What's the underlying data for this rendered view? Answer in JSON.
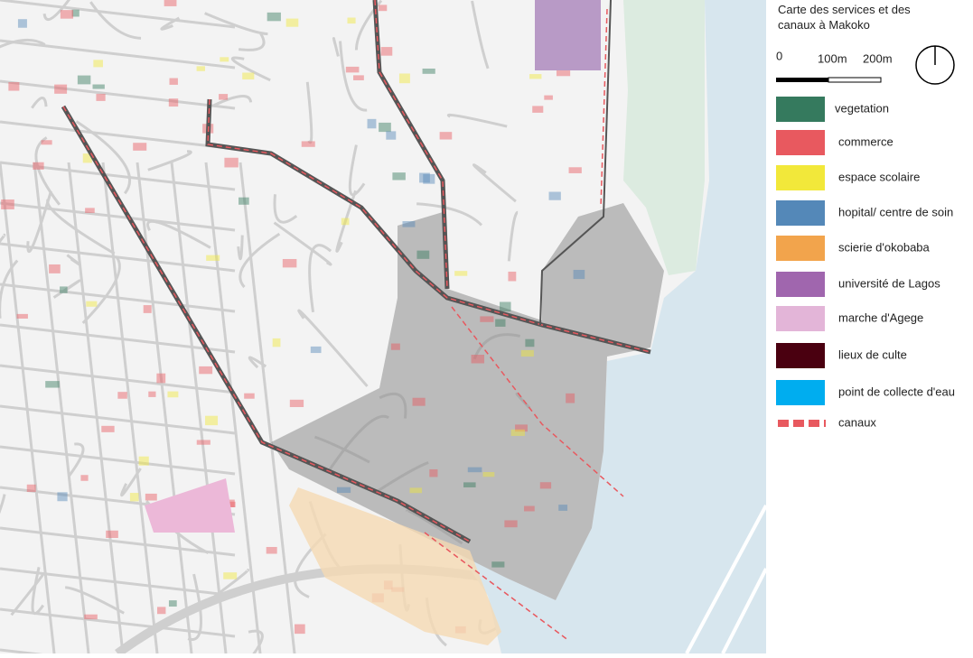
{
  "legend": {
    "title": "Carte des services et des canaux à Makoko",
    "scale": [
      "0",
      "100m",
      "200m"
    ],
    "items": [
      {
        "label": "vegetation",
        "color": "#357a5e"
      },
      {
        "label": "commerce",
        "color": "#e8595f"
      },
      {
        "label": "espace scolaire",
        "color": "#f2e83a"
      },
      {
        "label": "hopital/ centre de soin",
        "color": "#5488b8"
      },
      {
        "label": "scierie d'okobaba",
        "color": "#f2a44c"
      },
      {
        "label": "université de Lagos",
        "color": "#a066ae"
      },
      {
        "label": "marche d'Agege",
        "color": "#e3b5d8"
      },
      {
        "label": "lieux de culte",
        "color": "#4a0010"
      },
      {
        "label": "point de collecte d'eau",
        "color": "#00adef"
      },
      {
        "label": "canaux",
        "color": "#e8595f"
      }
    ]
  }
}
